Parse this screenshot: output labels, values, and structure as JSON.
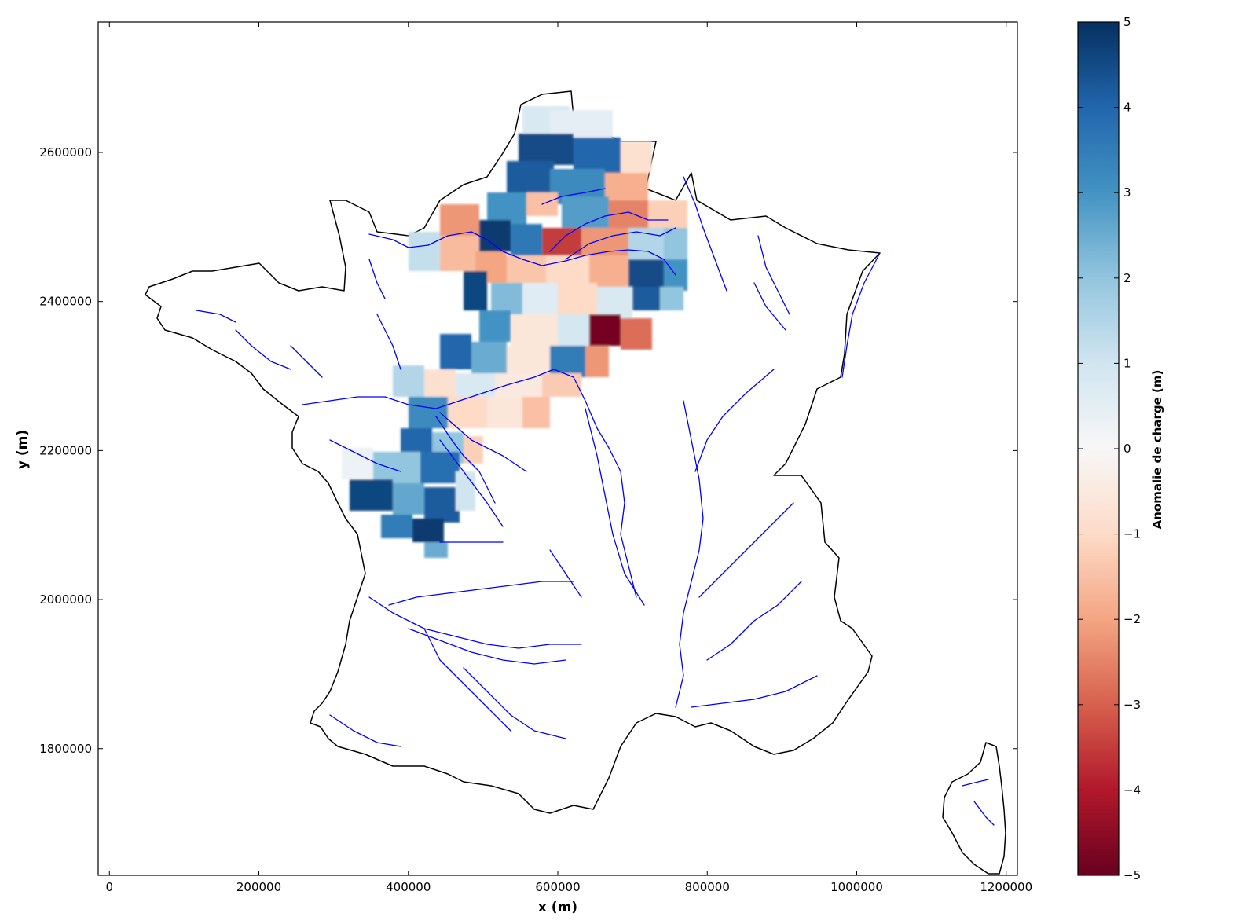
{
  "chart_data": {
    "type": "heatmap",
    "xlabel": "x (m)",
    "ylabel": "y (m)",
    "xlim": [
      -15000,
      1215000
    ],
    "ylim": [
      1630000,
      2775000
    ],
    "x_ticks": [
      "0",
      "200000",
      "400000",
      "600000",
      "800000",
      "1000000",
      "1200000"
    ],
    "y_ticks": [
      "1800000",
      "2000000",
      "2200000",
      "2400000",
      "2600000"
    ],
    "colorbar": {
      "label": "Anomalie de charge (m)",
      "range": [
        -5,
        5
      ],
      "ticks": [
        "−5",
        "−4",
        "−3",
        "−2",
        "−1",
        "0",
        "1",
        "2",
        "3",
        "4",
        "5"
      ],
      "colormap": "RdBu",
      "colors": [
        "#67001f",
        "#b2182b",
        "#d6604d",
        "#f4a582",
        "#fddbc7",
        "#f7f7f7",
        "#d1e5f0",
        "#92c5de",
        "#4393c3",
        "#2166ac",
        "#053061"
      ]
    },
    "river_color": "#0000ff",
    "coastline_color": "#000000",
    "grid": false
  }
}
